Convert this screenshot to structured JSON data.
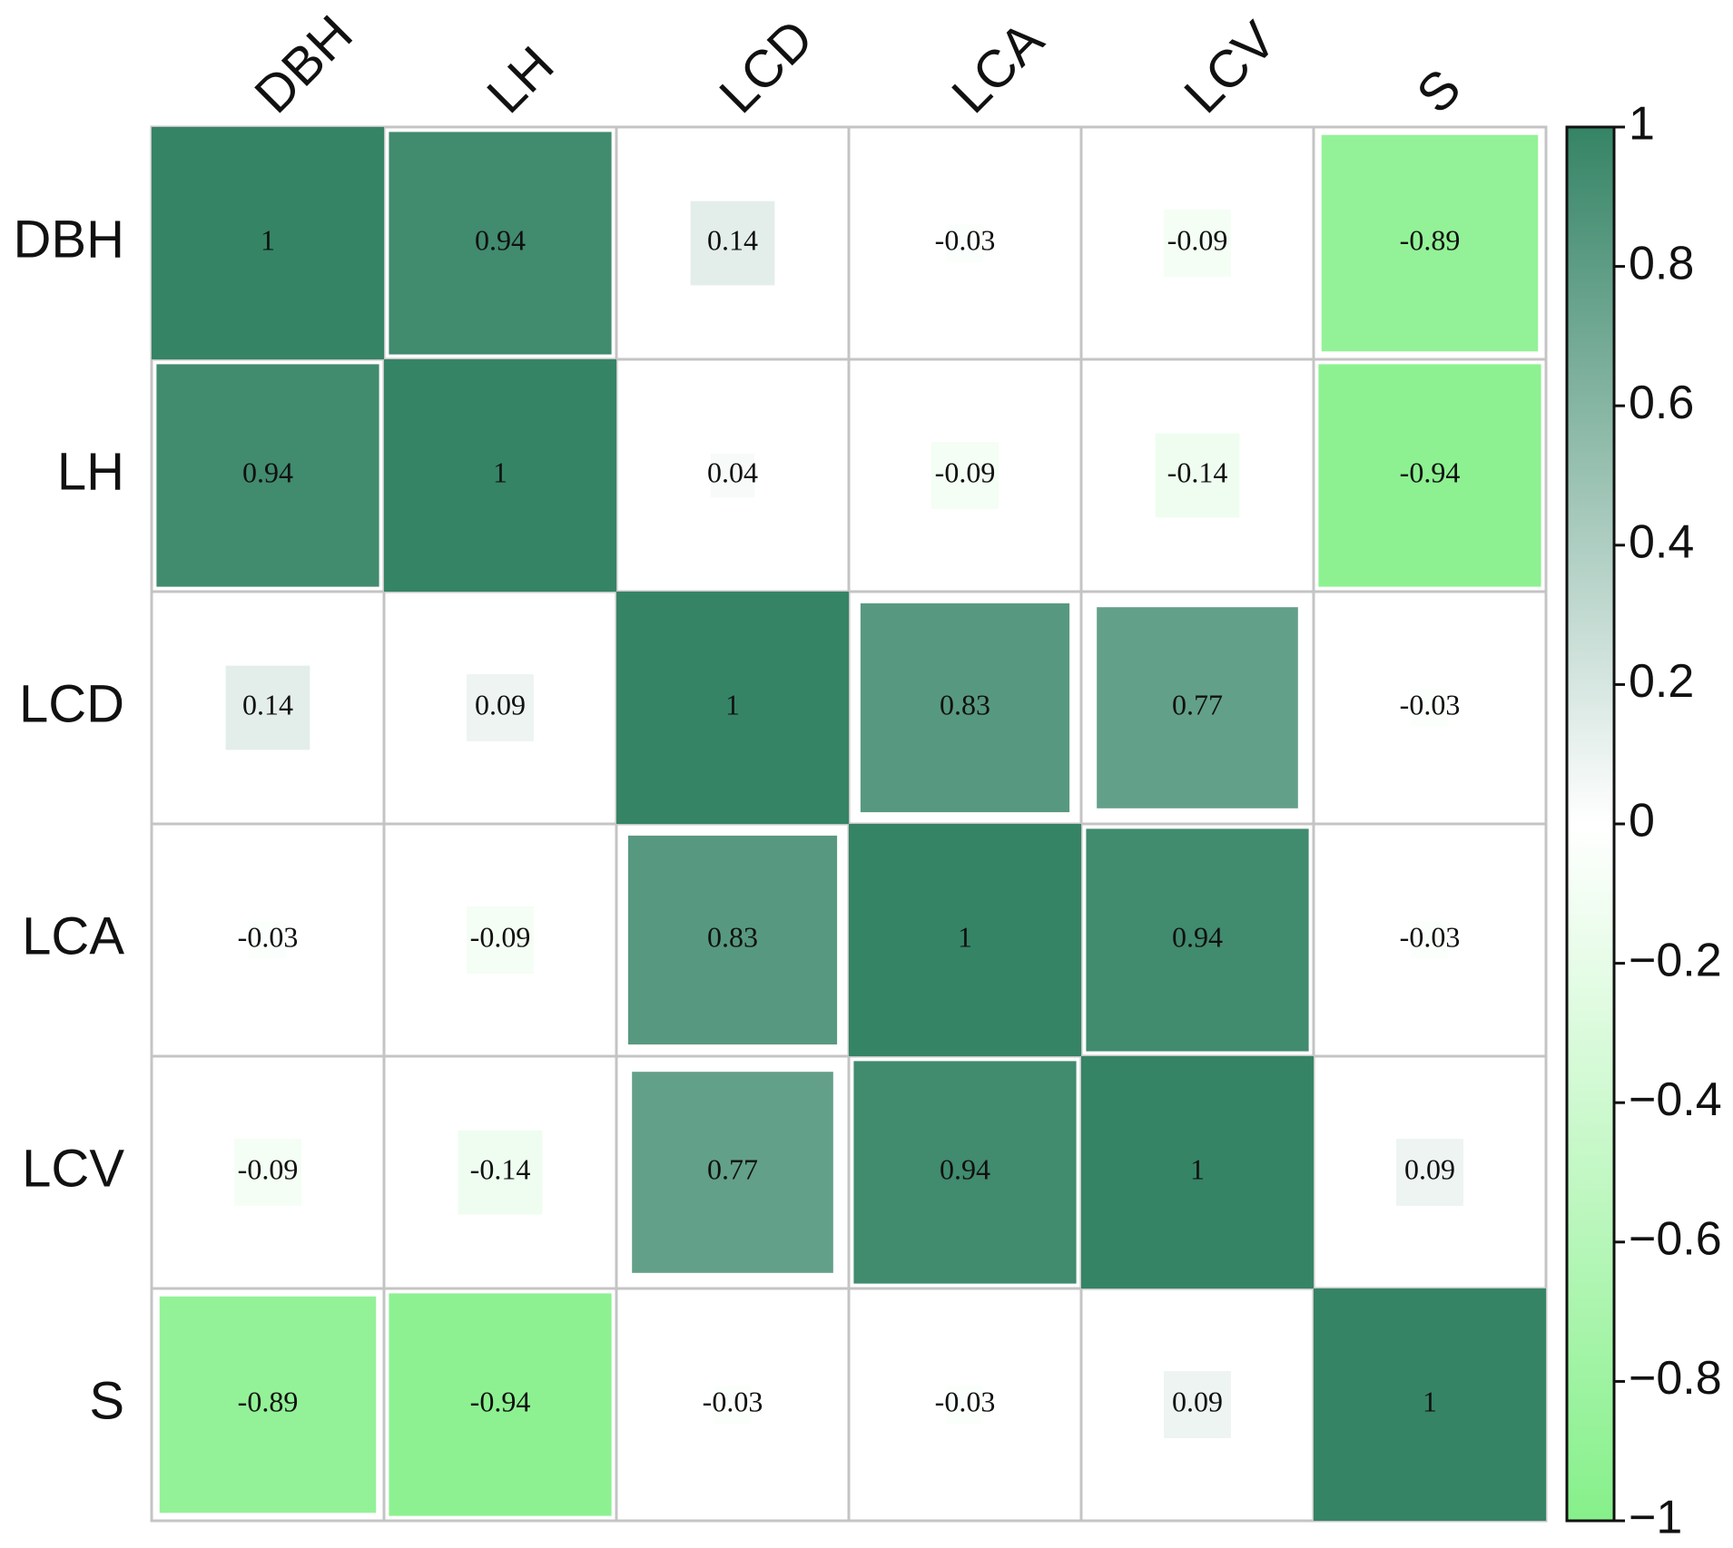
{
  "chart_data": {
    "type": "heatmap",
    "x_categories": [
      "DBH",
      "LH",
      "LCD",
      "LCA",
      "LCV",
      "S"
    ],
    "y_categories": [
      "DBH",
      "LH",
      "LCD",
      "LCA",
      "LCV",
      "S"
    ],
    "values": [
      [
        1,
        0.94,
        0.14,
        -0.03,
        -0.09,
        -0.89
      ],
      [
        0.94,
        1,
        0.04,
        -0.09,
        -0.14,
        -0.94
      ],
      [
        0.14,
        0.09,
        1,
        0.83,
        0.77,
        -0.03
      ],
      [
        -0.03,
        -0.09,
        0.83,
        1,
        0.94,
        -0.03
      ],
      [
        -0.09,
        -0.14,
        0.77,
        0.94,
        1,
        0.09
      ],
      [
        -0.89,
        -0.94,
        -0.03,
        -0.03,
        0.09,
        1
      ]
    ],
    "colors": [
      "#86f08a",
      "#ffffff",
      "#358466"
    ],
    "clim": [
      -1,
      1
    ],
    "cticks": [
      {
        "value": -1,
        "label": "−1"
      },
      {
        "value": -0.8,
        "label": "−0.8"
      },
      {
        "value": -0.6,
        "label": "−0.6"
      },
      {
        "value": -0.4,
        "label": "−0.4"
      },
      {
        "value": -0.2,
        "label": "−0.2"
      },
      0,
      0.2,
      0.4,
      0.6,
      0.8,
      1
    ]
  }
}
